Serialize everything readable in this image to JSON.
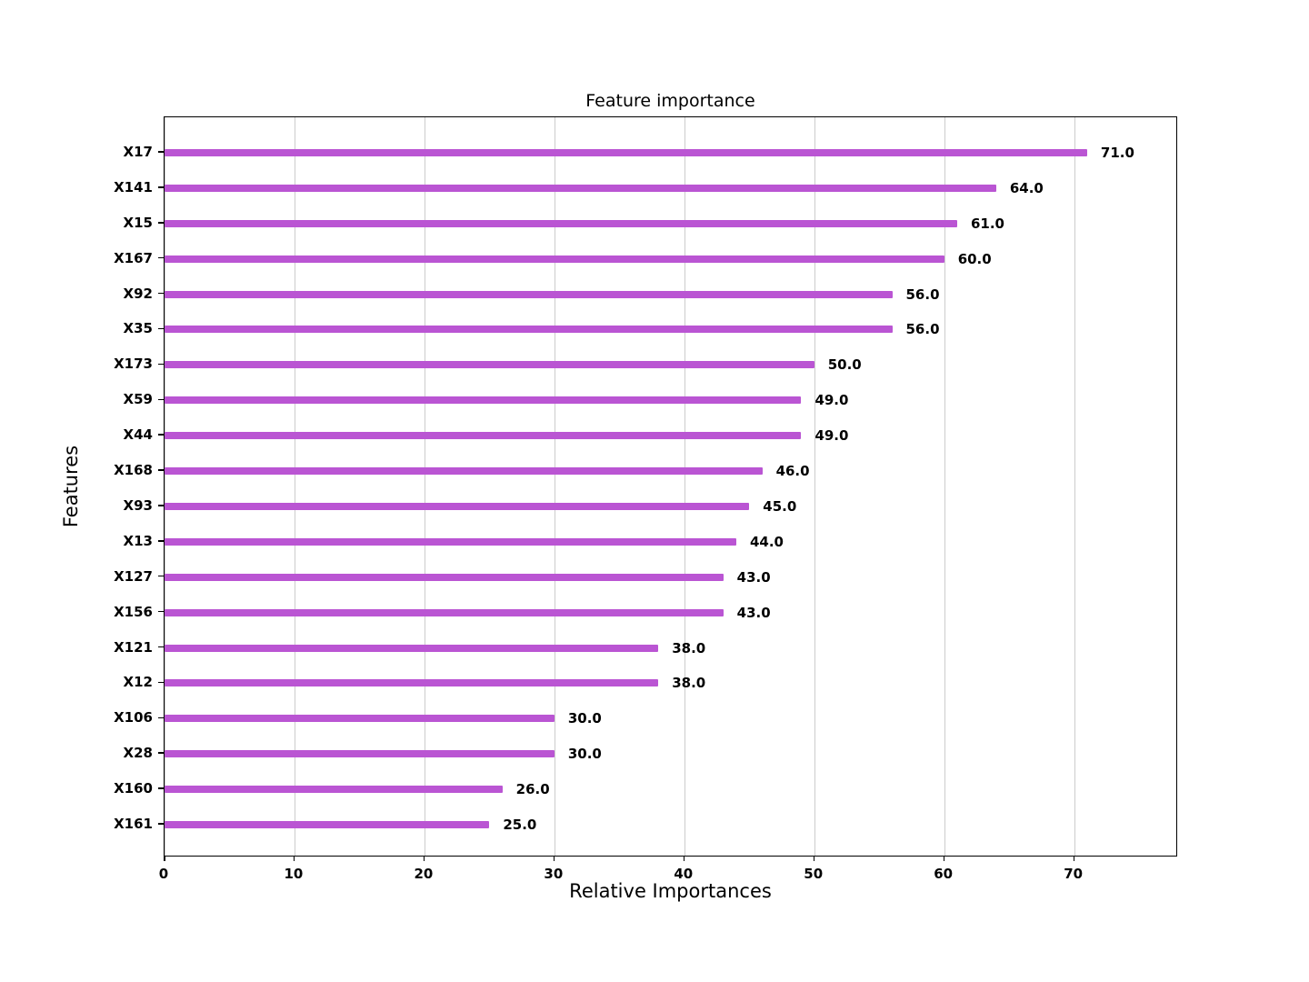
{
  "chart_data": {
    "type": "bar",
    "orientation": "horizontal",
    "title": "Feature importance",
    "xlabel": "Relative Importances",
    "ylabel": "Features",
    "categories": [
      "X17",
      "X141",
      "X15",
      "X167",
      "X92",
      "X35",
      "X173",
      "X59",
      "X44",
      "X168",
      "X93",
      "X13",
      "X127",
      "X156",
      "X121",
      "X12",
      "X106",
      "X28",
      "X160",
      "X161"
    ],
    "values": [
      71,
      64,
      61,
      60,
      56,
      56,
      50,
      49,
      49,
      46,
      45,
      44,
      43,
      43,
      38,
      38,
      30,
      30,
      26,
      25
    ],
    "value_labels": [
      "71.0",
      "64.0",
      "61.0",
      "60.0",
      "56.0",
      "56.0",
      "50.0",
      "49.0",
      "49.0",
      "46.0",
      "45.0",
      "44.0",
      "43.0",
      "43.0",
      "38.0",
      "38.0",
      "30.0",
      "30.0",
      "26.0",
      "25.0"
    ],
    "xlim": [
      0,
      78
    ],
    "xticks": [
      0,
      10,
      20,
      30,
      40,
      50,
      60,
      70
    ],
    "bar_color": "#ba55d3",
    "grid": "vertical-only",
    "legend_position": "none",
    "background_color": "#ffffff"
  }
}
